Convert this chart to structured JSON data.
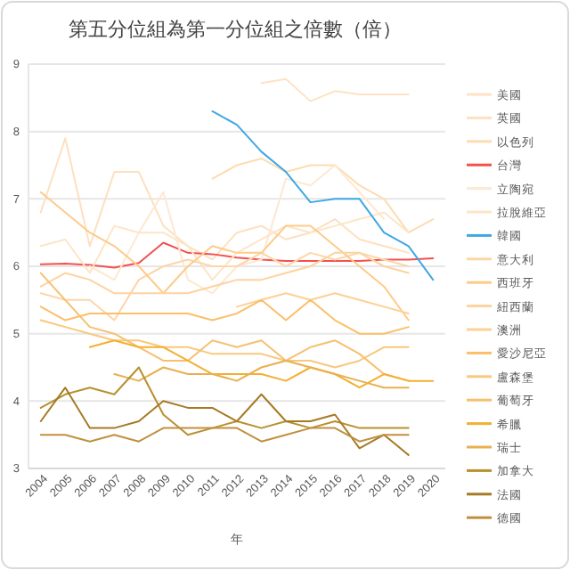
{
  "chart_data": {
    "type": "line",
    "title": "第五分位組為第一分位組之倍數（倍）",
    "xlabel": "年",
    "x": [
      2004,
      2005,
      2006,
      2007,
      2008,
      2009,
      2010,
      2011,
      2012,
      2013,
      2014,
      2015,
      2016,
      2017,
      2018,
      2019,
      2020
    ],
    "xlim": [
      2003.5,
      2020.5
    ],
    "xticks": [
      2004,
      2005,
      2006,
      2007,
      2008,
      2009,
      2010,
      2011,
      2012,
      2013,
      2014,
      2015,
      2016,
      2017,
      2018,
      2019,
      2020
    ],
    "ylim": [
      3,
      9
    ],
    "yticks": [
      3,
      4,
      5,
      6,
      7,
      8,
      9
    ],
    "grid": "y",
    "legend": "right",
    "marker": "none",
    "line_style": "solid",
    "series": [
      {
        "name": "美國",
        "color": "#fde3c6",
        "values": [
          null,
          null,
          null,
          null,
          null,
          null,
          null,
          null,
          null,
          8.72,
          8.78,
          8.45,
          8.6,
          8.55,
          8.55,
          8.55,
          null
        ]
      },
      {
        "name": "英國",
        "color": "#fde0c0",
        "values": [
          6.8,
          7.9,
          6.3,
          7.4,
          7.4,
          6.6,
          6.3,
          6.1,
          6.5,
          6.6,
          6.4,
          6.5,
          6.7,
          6.4,
          6.3,
          6.2,
          null
        ]
      },
      {
        "name": "以色列",
        "color": "#fddcb0",
        "values": [
          null,
          null,
          null,
          null,
          null,
          null,
          null,
          7.3,
          7.5,
          7.6,
          7.4,
          7.5,
          7.5,
          7.2,
          7.0,
          6.5,
          6.7
        ]
      },
      {
        "name": "台灣",
        "color": "#f45050",
        "values": [
          6.03,
          6.04,
          6.02,
          5.98,
          6.05,
          6.35,
          6.2,
          6.18,
          6.13,
          6.1,
          6.08,
          6.08,
          6.08,
          6.08,
          6.1,
          6.1,
          6.12
        ]
      },
      {
        "name": "立陶宛",
        "color": "#fde8d2",
        "values": [
          null,
          null,
          6.0,
          5.8,
          6.5,
          7.1,
          5.8,
          5.6,
          6.0,
          6.1,
          7.3,
          7.2,
          7.5,
          7.1,
          6.7,
          null,
          null
        ]
      },
      {
        "name": "拉脫維亞",
        "color": "#fde5c8",
        "values": [
          6.3,
          6.4,
          5.9,
          6.6,
          6.5,
          6.5,
          6.3,
          5.8,
          6.2,
          6.4,
          6.6,
          6.5,
          6.6,
          6.7,
          6.8,
          6.5,
          null
        ]
      },
      {
        "name": "韓國",
        "color": "#3ea8e5",
        "values": [
          null,
          null,
          null,
          null,
          null,
          null,
          null,
          8.3,
          8.1,
          7.7,
          7.4,
          6.95,
          7.0,
          7.0,
          6.5,
          6.3,
          5.8
        ]
      },
      {
        "name": "意大利",
        "color": "#fdd6a8",
        "values": [
          5.6,
          5.5,
          5.5,
          5.2,
          5.8,
          6.0,
          6.1,
          6.0,
          6.0,
          6.2,
          6.0,
          6.2,
          6.1,
          6.2,
          6.1,
          6.0,
          null
        ]
      },
      {
        "name": "西班牙",
        "color": "#fdcb8a",
        "values": [
          7.1,
          6.8,
          6.5,
          6.3,
          6.0,
          5.6,
          6.0,
          6.3,
          6.2,
          6.2,
          6.6,
          6.6,
          6.3,
          6.0,
          5.7,
          5.2,
          null
        ]
      },
      {
        "name": "紐西蘭",
        "color": "#fdd3a0",
        "values": [
          5.7,
          5.9,
          5.8,
          5.6,
          5.6,
          5.6,
          5.6,
          5.7,
          5.8,
          5.8,
          5.9,
          6.0,
          6.2,
          6.2,
          6.0,
          5.9,
          null
        ]
      },
      {
        "name": "澳洲",
        "color": "#fdd095",
        "values": [
          null,
          null,
          null,
          null,
          null,
          null,
          null,
          null,
          5.4,
          5.5,
          5.6,
          5.5,
          5.6,
          5.5,
          5.4,
          5.3,
          null
        ]
      },
      {
        "name": "愛沙尼亞",
        "color": "#fbbf6a",
        "values": [
          5.4,
          5.2,
          5.3,
          5.3,
          5.3,
          5.3,
          5.3,
          5.2,
          5.3,
          5.5,
          5.2,
          5.5,
          5.2,
          5.0,
          5.0,
          5.1,
          null
        ]
      },
      {
        "name": "盧森堡",
        "color": "#f8c87e",
        "values": [
          5.2,
          5.1,
          5.0,
          4.9,
          4.9,
          4.8,
          4.8,
          4.7,
          4.7,
          4.7,
          4.6,
          4.6,
          4.5,
          4.6,
          4.8,
          4.8,
          null
        ]
      },
      {
        "name": "葡萄牙",
        "color": "#f6c070",
        "values": [
          5.9,
          5.5,
          5.1,
          5.0,
          4.8,
          4.6,
          4.6,
          4.9,
          4.8,
          4.9,
          4.6,
          4.8,
          4.9,
          4.7,
          4.4,
          4.3,
          null
        ]
      },
      {
        "name": "希臘",
        "color": "#f3b030",
        "values": [
          null,
          null,
          4.8,
          4.9,
          4.8,
          4.8,
          4.6,
          4.4,
          4.4,
          4.4,
          4.3,
          4.5,
          4.4,
          4.2,
          4.4,
          4.3,
          4.3
        ]
      },
      {
        "name": "瑞士",
        "color": "#e8b050",
        "values": [
          null,
          null,
          null,
          4.4,
          4.3,
          4.5,
          4.4,
          4.4,
          4.3,
          4.5,
          4.6,
          4.5,
          4.4,
          4.3,
          4.2,
          4.2,
          null
        ]
      },
      {
        "name": "加拿大",
        "color": "#b8902e",
        "values": [
          3.9,
          4.1,
          4.2,
          4.1,
          4.5,
          3.8,
          3.5,
          3.6,
          3.7,
          3.6,
          3.7,
          3.6,
          3.7,
          3.6,
          3.6,
          3.6,
          null
        ]
      },
      {
        "name": "法國",
        "color": "#a67a24",
        "values": [
          3.7,
          4.2,
          3.6,
          3.6,
          3.7,
          4.0,
          3.9,
          3.9,
          3.7,
          4.1,
          3.7,
          3.7,
          3.8,
          3.3,
          3.5,
          3.2,
          null
        ]
      },
      {
        "name": "德國",
        "color": "#c09040",
        "values": [
          3.5,
          3.5,
          3.4,
          3.5,
          3.4,
          3.6,
          3.6,
          3.6,
          3.6,
          3.4,
          3.5,
          3.6,
          3.6,
          3.4,
          3.5,
          3.5,
          null
        ]
      }
    ]
  }
}
